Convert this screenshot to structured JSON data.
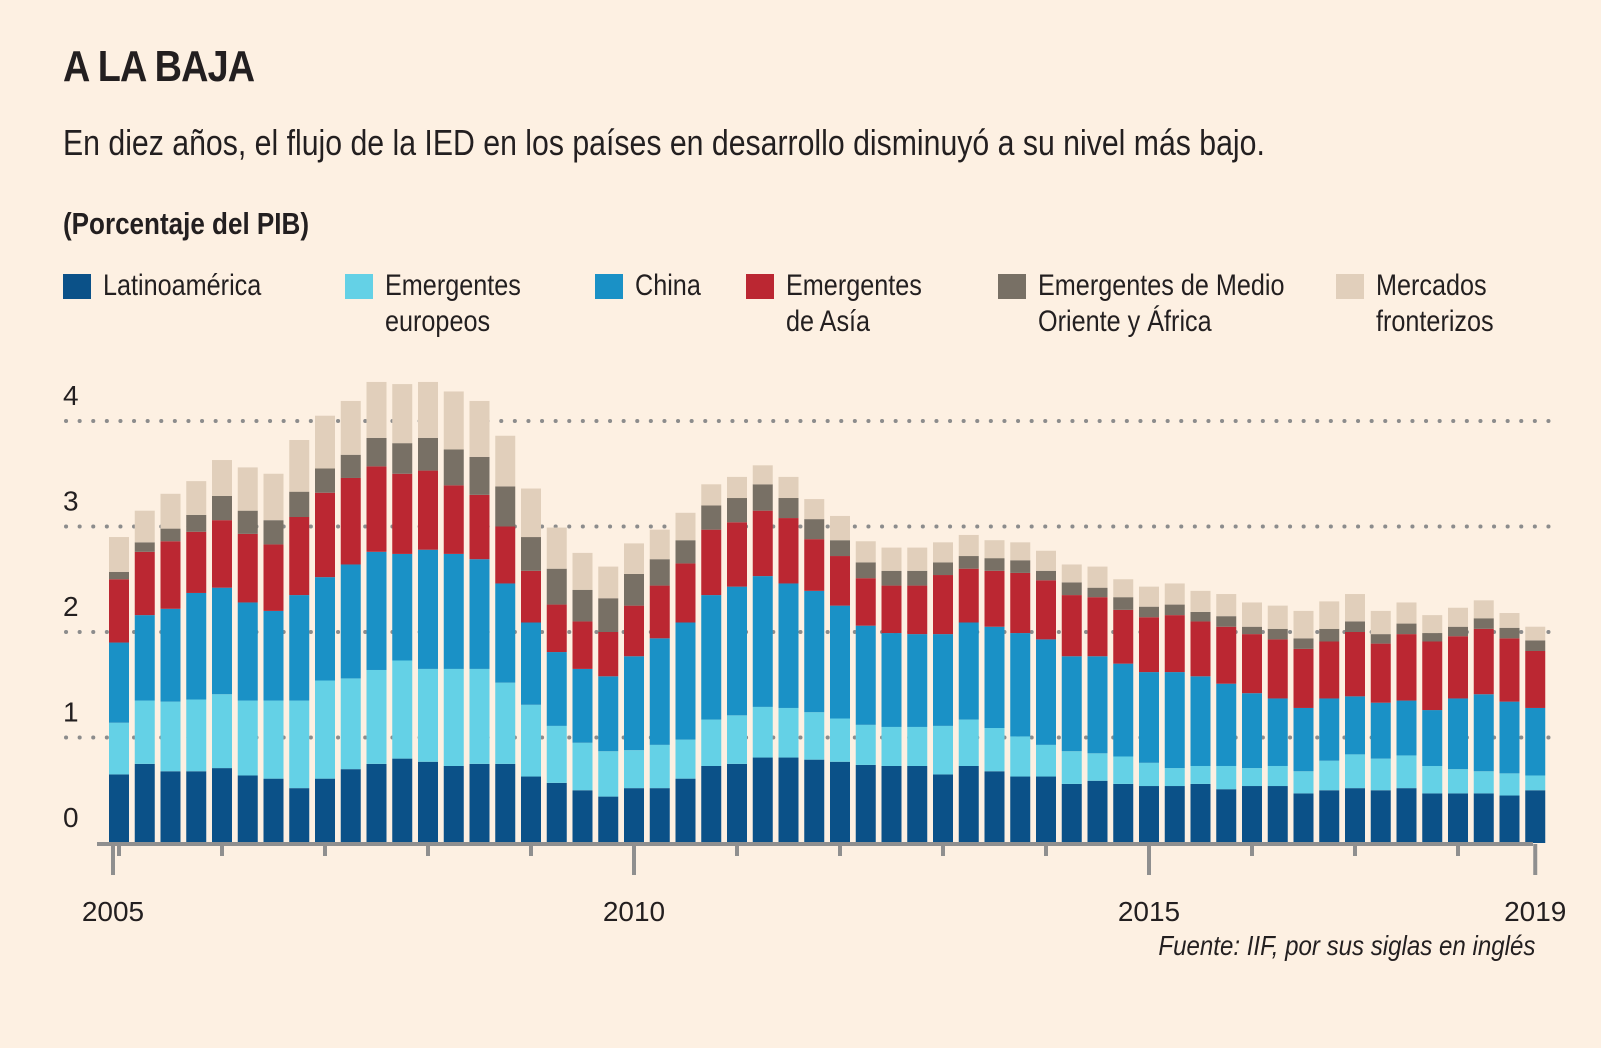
{
  "header": {
    "title": "A LA BAJA",
    "subtitle": "En diez años, el flujo de la IED en los países en desarrollo disminuyó a su nivel más bajo.",
    "unit": "(Porcentaje del PIB)"
  },
  "legend": [
    {
      "label": "Latinoamérica",
      "color": "#0b5188"
    },
    {
      "label": "Emergentes\neuropeos",
      "color": "#64d1e6"
    },
    {
      "label": "China",
      "color": "#1a91c6"
    },
    {
      "label": "Emergentes\nde Asía",
      "color": "#bb2732"
    },
    {
      "label": "Emergentes de Medio\nOriente y África",
      "color": "#787065"
    },
    {
      "label": "Mercados\nfronterizos",
      "color": "#e1cfbb"
    }
  ],
  "source": "Fuente: IIF, por sus siglas en inglés",
  "chart_data": {
    "type": "bar",
    "stacked": true,
    "title": "A LA BAJA",
    "subtitle": "En diez años, el flujo de la IED en los países en desarrollo disminuyó a su nivel más bajo.",
    "ylabel": "(Porcentaje del PIB)",
    "xlabel": "",
    "ylim": [
      0,
      4.4
    ],
    "yticks": [
      0,
      1,
      2,
      3,
      4
    ],
    "grid": "dotted horizontal at each y tick",
    "x_tick_labels": [
      {
        "bar_index": 0,
        "label": "2005"
      },
      {
        "bar_index": 20,
        "label": "2010"
      },
      {
        "bar_index": 40,
        "label": "2015"
      },
      {
        "bar_index": 55,
        "label": "2019"
      }
    ],
    "minor_tick_every_bars": 4,
    "legend_position": "top",
    "frequency": "quarterly",
    "bar_count": 56,
    "series": [
      {
        "name": "Latinoamérica",
        "color": "#0b5188",
        "values": [
          0.65,
          0.75,
          0.68,
          0.68,
          0.71,
          0.64,
          0.61,
          0.52,
          0.61,
          0.7,
          0.75,
          0.8,
          0.77,
          0.73,
          0.75,
          0.75,
          0.63,
          0.57,
          0.5,
          0.44,
          0.52,
          0.52,
          0.61,
          0.73,
          0.75,
          0.81,
          0.81,
          0.79,
          0.77,
          0.74,
          0.73,
          0.73,
          0.65,
          0.73,
          0.68,
          0.63,
          0.63,
          0.56,
          0.59,
          0.56,
          0.54,
          0.54,
          0.56,
          0.51,
          0.54,
          0.54,
          0.47,
          0.5,
          0.52,
          0.5,
          0.52,
          0.47,
          0.47,
          0.47,
          0.45,
          0.5
        ]
      },
      {
        "name": "Emergentes europeos",
        "color": "#64d1e6",
        "values": [
          0.49,
          0.6,
          0.66,
          0.68,
          0.7,
          0.71,
          0.74,
          0.83,
          0.93,
          0.86,
          0.89,
          0.93,
          0.88,
          0.92,
          0.9,
          0.77,
          0.68,
          0.54,
          0.45,
          0.43,
          0.36,
          0.41,
          0.37,
          0.44,
          0.46,
          0.48,
          0.47,
          0.45,
          0.41,
          0.38,
          0.37,
          0.37,
          0.46,
          0.44,
          0.41,
          0.38,
          0.3,
          0.31,
          0.26,
          0.26,
          0.22,
          0.17,
          0.17,
          0.22,
          0.17,
          0.19,
          0.21,
          0.28,
          0.32,
          0.3,
          0.31,
          0.26,
          0.23,
          0.21,
          0.21,
          0.14
        ]
      },
      {
        "name": "China",
        "color": "#1a91c6",
        "values": [
          0.76,
          0.81,
          0.88,
          1.01,
          1.01,
          0.93,
          0.85,
          1.0,
          0.98,
          1.08,
          1.12,
          1.01,
          1.13,
          1.09,
          1.04,
          0.94,
          0.78,
          0.7,
          0.7,
          0.71,
          0.89,
          1.01,
          1.11,
          1.18,
          1.22,
          1.24,
          1.18,
          1.15,
          1.07,
          0.94,
          0.89,
          0.88,
          0.87,
          0.92,
          0.96,
          0.98,
          1.0,
          0.9,
          0.92,
          0.88,
          0.86,
          0.91,
          0.85,
          0.78,
          0.71,
          0.64,
          0.6,
          0.59,
          0.55,
          0.53,
          0.52,
          0.53,
          0.67,
          0.73,
          0.68,
          0.64
        ]
      },
      {
        "name": "Emergentes de Asía",
        "color": "#bb2732",
        "values": [
          0.6,
          0.6,
          0.64,
          0.58,
          0.64,
          0.65,
          0.63,
          0.74,
          0.8,
          0.82,
          0.81,
          0.76,
          0.75,
          0.65,
          0.61,
          0.54,
          0.49,
          0.45,
          0.45,
          0.42,
          0.48,
          0.5,
          0.56,
          0.62,
          0.61,
          0.62,
          0.62,
          0.49,
          0.47,
          0.45,
          0.45,
          0.46,
          0.56,
          0.51,
          0.53,
          0.57,
          0.56,
          0.58,
          0.56,
          0.51,
          0.52,
          0.54,
          0.52,
          0.54,
          0.56,
          0.56,
          0.56,
          0.54,
          0.61,
          0.56,
          0.63,
          0.65,
          0.59,
          0.62,
          0.6,
          0.54
        ]
      },
      {
        "name": "Emergentes de Medio Oriente y África",
        "color": "#787065",
        "values": [
          0.07,
          0.09,
          0.12,
          0.16,
          0.23,
          0.22,
          0.23,
          0.24,
          0.23,
          0.22,
          0.27,
          0.29,
          0.31,
          0.34,
          0.36,
          0.38,
          0.32,
          0.34,
          0.3,
          0.32,
          0.3,
          0.25,
          0.22,
          0.23,
          0.23,
          0.25,
          0.19,
          0.19,
          0.15,
          0.15,
          0.14,
          0.14,
          0.12,
          0.12,
          0.12,
          0.12,
          0.09,
          0.12,
          0.09,
          0.12,
          0.1,
          0.1,
          0.09,
          0.1,
          0.07,
          0.1,
          0.1,
          0.12,
          0.1,
          0.09,
          0.1,
          0.08,
          0.09,
          0.1,
          0.1,
          0.1
        ]
      },
      {
        "name": "Mercados fronterizos",
        "color": "#e1cfbb",
        "values": [
          0.33,
          0.3,
          0.33,
          0.32,
          0.34,
          0.41,
          0.44,
          0.49,
          0.5,
          0.51,
          0.53,
          0.56,
          0.53,
          0.55,
          0.53,
          0.48,
          0.46,
          0.39,
          0.35,
          0.3,
          0.29,
          0.28,
          0.26,
          0.2,
          0.2,
          0.18,
          0.2,
          0.19,
          0.23,
          0.2,
          0.22,
          0.22,
          0.19,
          0.2,
          0.17,
          0.17,
          0.19,
          0.17,
          0.2,
          0.17,
          0.19,
          0.2,
          0.2,
          0.21,
          0.23,
          0.22,
          0.26,
          0.26,
          0.26,
          0.22,
          0.2,
          0.17,
          0.18,
          0.17,
          0.14,
          0.13
        ]
      }
    ]
  }
}
